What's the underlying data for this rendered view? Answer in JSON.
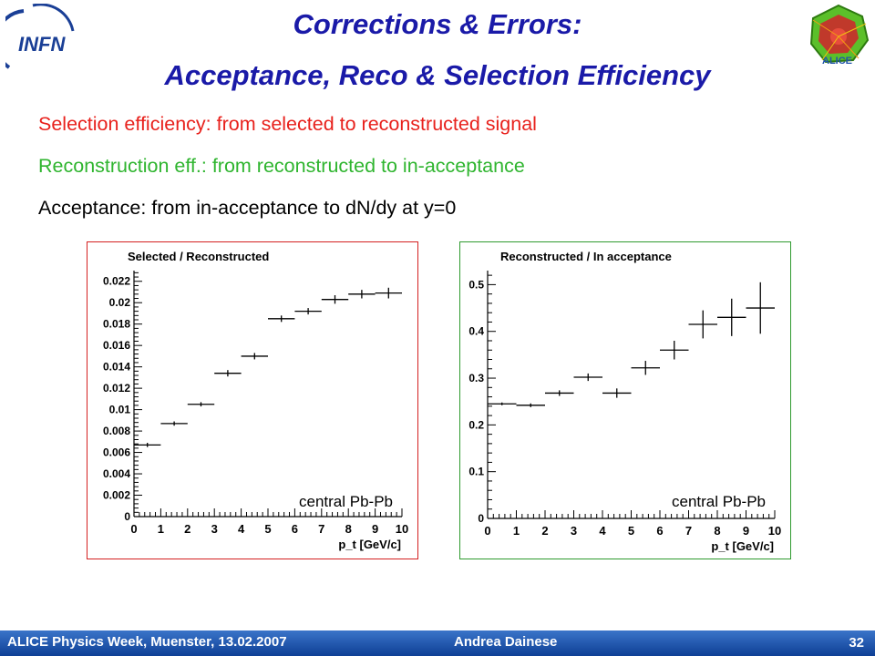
{
  "logos": {
    "infn_text": "INFN",
    "alice_text": "ALICE"
  },
  "title": {
    "line1": "Corrections & Errors:",
    "line2": "Acceptance, Reco & Selection Efficiency"
  },
  "bullets": [
    "Selection efficiency: from selected to reconstructed signal",
    "Reconstruction eff.: from reconstructed to in-acceptance",
    "Acceptance: from in-acceptance to dN/dy at y=0"
  ],
  "colors": {
    "title": "#1a1aa8",
    "selection": "#e8211c",
    "reconstruction": "#2fb52f",
    "left_frame": "#d42020",
    "right_frame": "#2e9a2e"
  },
  "chart_data": [
    {
      "type": "scatter",
      "title": "Selected / Reconstructed",
      "xlabel": "p_t [GeV/c]",
      "ylabel": "",
      "xlim": [
        0,
        10
      ],
      "ylim": [
        0,
        0.023
      ],
      "xticks": [
        "0",
        "1",
        "2",
        "3",
        "4",
        "5",
        "6",
        "7",
        "8",
        "9",
        "10"
      ],
      "yticks": [
        "0",
        "0.002",
        "0.004",
        "0.006",
        "0.008",
        "0.01",
        "0.012",
        "0.014",
        "0.016",
        "0.018",
        "0.02",
        "0.022"
      ],
      "annotation": "central Pb-Pb",
      "grid": false,
      "points": [
        {
          "x0": 0,
          "x1": 1,
          "y": 0.0067,
          "e": 0.0002
        },
        {
          "x0": 1,
          "x1": 2,
          "y": 0.0087,
          "e": 0.0002
        },
        {
          "x0": 2,
          "x1": 3,
          "y": 0.0105,
          "e": 0.0002
        },
        {
          "x0": 3,
          "x1": 4,
          "y": 0.0134,
          "e": 0.0003
        },
        {
          "x0": 4,
          "x1": 5,
          "y": 0.015,
          "e": 0.0003
        },
        {
          "x0": 5,
          "x1": 6,
          "y": 0.0185,
          "e": 0.0003
        },
        {
          "x0": 6,
          "x1": 7,
          "y": 0.0192,
          "e": 0.0003
        },
        {
          "x0": 7,
          "x1": 8,
          "y": 0.0203,
          "e": 0.0004
        },
        {
          "x0": 8,
          "x1": 9,
          "y": 0.0208,
          "e": 0.0004
        },
        {
          "x0": 9,
          "x1": 10,
          "y": 0.0209,
          "e": 0.0005
        }
      ]
    },
    {
      "type": "scatter",
      "title": "Reconstructed / In acceptance",
      "xlabel": "p_t [GeV/c]",
      "ylabel": "",
      "xlim": [
        0,
        10
      ],
      "ylim": [
        0,
        0.53
      ],
      "xticks": [
        "0",
        "1",
        "2",
        "3",
        "4",
        "5",
        "6",
        "7",
        "8",
        "9",
        "10"
      ],
      "yticks": [
        "0",
        "0.1",
        "0.2",
        "0.3",
        "0.4",
        "0.5"
      ],
      "annotation": "central Pb-Pb",
      "grid": false,
      "points": [
        {
          "x0": 0,
          "x1": 1,
          "y": 0.245,
          "e": 0.003
        },
        {
          "x0": 1,
          "x1": 2,
          "y": 0.242,
          "e": 0.004
        },
        {
          "x0": 2,
          "x1": 3,
          "y": 0.268,
          "e": 0.006
        },
        {
          "x0": 3,
          "x1": 4,
          "y": 0.302,
          "e": 0.008
        },
        {
          "x0": 4,
          "x1": 5,
          "y": 0.268,
          "e": 0.01
        },
        {
          "x0": 5,
          "x1": 6,
          "y": 0.322,
          "e": 0.015
        },
        {
          "x0": 6,
          "x1": 7,
          "y": 0.36,
          "e": 0.02
        },
        {
          "x0": 7,
          "x1": 8,
          "y": 0.415,
          "e": 0.03
        },
        {
          "x0": 8,
          "x1": 9,
          "y": 0.43,
          "e": 0.04
        },
        {
          "x0": 9,
          "x1": 10,
          "y": 0.45,
          "e": 0.055
        }
      ]
    }
  ],
  "footer": {
    "left": "ALICE Physics Week, Muenster, 13.02.2007",
    "author": "Andrea Dainese",
    "page": "32"
  }
}
